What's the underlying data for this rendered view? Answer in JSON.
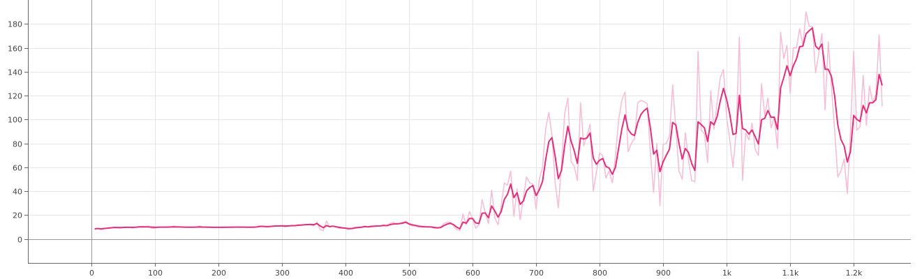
{
  "chart_data": {
    "type": "line",
    "title": "",
    "xlabel": "",
    "ylabel": "",
    "xlim": [
      -100,
      1290
    ],
    "ylim": [
      -20,
      200
    ],
    "x_ticks": [
      0,
      100,
      200,
      300,
      400,
      500,
      600,
      700,
      800,
      900,
      1000,
      1100,
      1200
    ],
    "x_tick_labels": [
      "0",
      "100",
      "200",
      "300",
      "400",
      "500",
      "600",
      "700",
      "800",
      "900",
      "1k",
      "1.1k",
      "1.2k"
    ],
    "y_ticks": [
      0,
      20,
      40,
      60,
      80,
      100,
      120,
      140,
      160,
      180
    ],
    "y_tick_labels": [
      "0",
      "20",
      "40",
      "60",
      "80",
      "100",
      "120",
      "140",
      "160",
      "180"
    ],
    "grid": true,
    "legend": "none",
    "colors": {
      "raw": "#f7bcd4",
      "smoothed": "#e0307a",
      "grid": "#e6e6e6",
      "zero_line": "#999999"
    },
    "series": [
      {
        "style": "raw",
        "x": [
          5,
          10,
          15,
          20,
          25,
          30,
          35,
          40,
          45,
          50,
          55,
          60,
          65,
          70,
          75,
          80,
          85,
          90,
          95,
          100,
          105,
          110,
          115,
          120,
          125,
          130,
          135,
          140,
          145,
          150,
          155,
          160,
          165,
          170,
          175,
          180,
          185,
          190,
          195,
          200,
          205,
          210,
          215,
          220,
          225,
          230,
          235,
          240,
          245,
          250,
          255,
          260,
          265,
          270,
          275,
          280,
          285,
          290,
          295,
          300,
          305,
          310,
          315,
          320,
          325,
          330,
          335,
          340,
          345,
          350,
          355,
          360,
          365,
          370,
          375,
          380,
          385,
          390,
          395,
          400,
          405,
          410,
          415,
          420,
          425,
          430,
          435,
          440,
          445,
          450,
          455,
          460,
          465,
          470,
          475,
          480,
          485,
          490,
          495,
          500,
          505,
          510,
          515,
          520,
          525,
          530,
          535,
          540,
          545,
          550,
          555,
          560,
          565,
          570,
          575,
          580,
          585,
          590,
          595,
          600,
          605,
          610,
          615,
          620,
          625,
          630,
          635,
          640,
          645,
          650,
          655,
          660,
          665,
          670,
          675,
          680,
          685,
          690,
          695,
          700,
          705,
          710,
          715,
          720,
          725,
          730,
          735,
          740,
          745,
          750,
          755,
          760,
          765,
          770,
          775,
          780,
          785,
          790,
          795,
          800,
          805,
          810,
          815,
          820,
          825,
          830,
          835,
          840,
          845,
          850,
          855,
          860,
          865,
          870,
          875,
          880,
          885,
          890,
          895,
          900,
          905,
          910,
          915,
          920,
          925,
          930,
          935,
          940,
          945,
          950,
          955,
          960,
          965,
          970,
          975,
          980,
          985,
          990,
          995,
          1000,
          1005,
          1010,
          1015,
          1020,
          1025,
          1030,
          1035,
          1040,
          1045,
          1050,
          1055,
          1060,
          1065,
          1070,
          1075,
          1080,
          1085,
          1090,
          1095,
          1100,
          1105,
          1110,
          1115,
          1120,
          1125,
          1130,
          1135,
          1140,
          1145,
          1150,
          1155,
          1160,
          1165,
          1170,
          1175,
          1180,
          1185,
          1190,
          1195,
          1200,
          1205,
          1210,
          1215,
          1220,
          1225,
          1230,
          1235,
          1240,
          1245
        ],
        "values": [
          8,
          9,
          8,
          9,
          9,
          9,
          10,
          10,
          9,
          10,
          10,
          10,
          9,
          10,
          10,
          10,
          10,
          11,
          9,
          9,
          10,
          10,
          10,
          10,
          10,
          11,
          10,
          10,
          10,
          10,
          10,
          10,
          10,
          11,
          10,
          10,
          10,
          10,
          10,
          10,
          10,
          10,
          10,
          10,
          10,
          10,
          10,
          10,
          10,
          10,
          10,
          10,
          11,
          11,
          10,
          10,
          11,
          11,
          11,
          11,
          10,
          11,
          11,
          11,
          12,
          12,
          12,
          12,
          12,
          11,
          14,
          8,
          7,
          15,
          10,
          11,
          10,
          9,
          9,
          9,
          8,
          9,
          10,
          10,
          10,
          11,
          10,
          11,
          11,
          11,
          11,
          12,
          11,
          13,
          14,
          13,
          13,
          14,
          15,
          12,
          11,
          11,
          10,
          10,
          10,
          10,
          10,
          9,
          9,
          10,
          13,
          14,
          14,
          11,
          8,
          7,
          21,
          12,
          23,
          17,
          9,
          12,
          33,
          22,
          13,
          41,
          18,
          12,
          28,
          47,
          45,
          57,
          19,
          42,
          16,
          35,
          52,
          47,
          46,
          25,
          50,
          60,
          92,
          106,
          87,
          47,
          26,
          63,
          105,
          118,
          65,
          61,
          49,
          114,
          78,
          86,
          96,
          40,
          56,
          72,
          70,
          51,
          57,
          47,
          70,
          100,
          116,
          123,
          73,
          80,
          84,
          114,
          116,
          115,
          113,
          72,
          39,
          80,
          28,
          79,
          80,
          86,
          129,
          93,
          57,
          50,
          89,
          66,
          49,
          48,
          157,
          91,
          88,
          64,
          124,
          92,
          114,
          135,
          142,
          102,
          83,
          60,
          90,
          169,
          49,
          89,
          83,
          97,
          75,
          70,
          130,
          103,
          118,
          93,
          102,
          76,
          173,
          151,
          162,
          122,
          160,
          160,
          176,
          162,
          190,
          178,
          178,
          139,
          155,
          172,
          108,
          165,
          128,
          91,
          52,
          57,
          67,
          38,
          90,
          157,
          91,
          94,
          137,
          95,
          128,
          114,
          121,
          171,
          111
        ]
      },
      {
        "style": "smoothed",
        "x": [
          5,
          10,
          15,
          20,
          25,
          30,
          35,
          40,
          45,
          50,
          55,
          60,
          65,
          70,
          75,
          80,
          85,
          90,
          95,
          100,
          105,
          110,
          115,
          120,
          125,
          130,
          135,
          140,
          145,
          150,
          155,
          160,
          165,
          170,
          175,
          180,
          185,
          190,
          195,
          200,
          205,
          210,
          215,
          220,
          225,
          230,
          235,
          240,
          245,
          250,
          255,
          260,
          265,
          270,
          275,
          280,
          285,
          290,
          295,
          300,
          305,
          310,
          315,
          320,
          325,
          330,
          335,
          340,
          345,
          350,
          355,
          360,
          365,
          370,
          375,
          380,
          385,
          390,
          395,
          400,
          405,
          410,
          415,
          420,
          425,
          430,
          435,
          440,
          445,
          450,
          455,
          460,
          465,
          470,
          475,
          480,
          485,
          490,
          495,
          500,
          505,
          510,
          515,
          520,
          525,
          530,
          535,
          540,
          545,
          550,
          555,
          560,
          565,
          570,
          575,
          580,
          585,
          590,
          595,
          600,
          605,
          610,
          615,
          620,
          625,
          630,
          635,
          640,
          645,
          650,
          655,
          660,
          665,
          670,
          675,
          680,
          685,
          690,
          695,
          700,
          705,
          710,
          715,
          720,
          725,
          730,
          735,
          740,
          745,
          750,
          755,
          760,
          765,
          770,
          775,
          780,
          785,
          790,
          795,
          800,
          805,
          810,
          815,
          820,
          825,
          830,
          835,
          840,
          845,
          850,
          855,
          860,
          865,
          870,
          875,
          880,
          885,
          890,
          895,
          900,
          905,
          910,
          915,
          920,
          925,
          930,
          935,
          940,
          945,
          950,
          955,
          960,
          965,
          970,
          975,
          980,
          985,
          990,
          995,
          1000,
          1005,
          1010,
          1015,
          1020,
          1025,
          1030,
          1035,
          1040,
          1045,
          1050,
          1055,
          1060,
          1065,
          1070,
          1075,
          1080,
          1085,
          1090,
          1095,
          1100,
          1105,
          1110,
          1115,
          1120,
          1125,
          1130,
          1135,
          1140,
          1145,
          1150,
          1155,
          1160,
          1165,
          1170,
          1175,
          1180,
          1185,
          1190,
          1195,
          1200,
          1205,
          1210,
          1215,
          1220,
          1225,
          1230,
          1235,
          1240,
          1245
        ],
        "values": [
          8.4,
          8.9,
          8.5,
          8.8,
          9.1,
          9.4,
          9.6,
          9.7,
          9.6,
          9.7,
          9.8,
          9.8,
          9.8,
          9.9,
          10.2,
          10.3,
          10.2,
          10.1,
          10.0,
          9.8,
          9.9,
          10.0,
          10.0,
          10.0,
          10.1,
          10.2,
          10.1,
          10.1,
          10.0,
          9.9,
          9.9,
          9.9,
          10.0,
          10.1,
          10.0,
          10.0,
          9.9,
          9.8,
          9.8,
          9.8,
          9.8,
          9.8,
          9.9,
          9.9,
          10.0,
          10.0,
          10.0,
          10.0,
          9.9,
          9.9,
          9.9,
          10.1,
          10.6,
          10.6,
          10.4,
          10.5,
          10.7,
          10.9,
          10.9,
          11.1,
          10.9,
          10.9,
          11.2,
          11.2,
          11.5,
          11.7,
          11.9,
          12.1,
          12.2,
          12.0,
          13.0,
          11.0,
          9.5,
          11.3,
          10.4,
          10.8,
          10.3,
          9.8,
          9.4,
          9.1,
          8.7,
          8.8,
          9.3,
          9.6,
          9.9,
          10.4,
          10.2,
          10.5,
          10.7,
          10.9,
          11.0,
          11.4,
          11.2,
          12.0,
          12.6,
          12.7,
          12.9,
          13.3,
          14.0,
          12.7,
          11.9,
          11.4,
          10.8,
          10.5,
          10.3,
          10.2,
          10.1,
          9.7,
          9.4,
          9.7,
          11.3,
          12.5,
          13.2,
          12.1,
          10.0,
          8.6,
          14.2,
          13.2,
          17.2,
          17.1,
          13.5,
          13.0,
          21.6,
          21.8,
          17.9,
          27.7,
          23.5,
          18.4,
          22.9,
          33.2,
          37.5,
          46.0,
          34.7,
          38.8,
          29.0,
          31.9,
          40.3,
          43.2,
          44.8,
          36.4,
          41.1,
          48.0,
          66.1,
          81.5,
          84.9,
          69.2,
          50.6,
          57.5,
          78.1,
          94.3,
          82.1,
          73.9,
          63.4,
          84.6,
          83.7,
          84.6,
          88.8,
          67.8,
          62.6,
          66.0,
          67.4,
          60.7,
          59.4,
          54.2,
          60.1,
          76.2,
          92.0,
          103.9,
          91.6,
          87.9,
          86.6,
          97.5,
          104.1,
          107.5,
          109.5,
          92.6,
          71.1,
          74.3,
          56.4,
          64.6,
          70.1,
          75.2,
          97.6,
          95.4,
          80.1,
          66.9,
          75.7,
          72.3,
          63.2,
          57.4,
          98.1,
          95.7,
          93.1,
          81.6,
          98.1,
          95.6,
          102.4,
          115.7,
          126.0,
          116.8,
          104.4,
          87.5,
          88.4,
          120.3,
          92.5,
          91.3,
          87.8,
          91.2,
          85.6,
          79.5,
          99.8,
          101.0,
          107.5,
          101.8,
          102.0,
          91.8,
          126.5,
          135.2,
          145.0,
          136.7,
          145.0,
          150.8,
          160.9,
          161.4,
          171.7,
          174.4,
          176.6,
          161.5,
          158.8,
          163.2,
          142.0,
          142.0,
          136.1,
          120.0,
          95.6,
          83.2,
          78.0,
          64.5,
          73.3,
          103.5,
          100.1,
          98.4,
          111.8,
          105.6,
          114.0,
          114.0,
          116.6,
          137.8,
          128.5
        ]
      }
    ]
  }
}
